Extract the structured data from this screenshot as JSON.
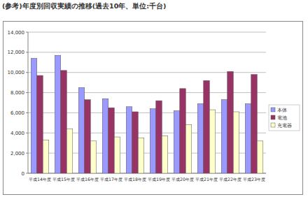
{
  "chart_data": {
    "type": "bar",
    "title": "(参考)年度別回収実績の推移(過去10年、単位:千台)",
    "categories": [
      "平成14年度",
      "平成15年度",
      "平成16年度",
      "平成17年度",
      "平成18年度",
      "平成19年度",
      "平成20年度",
      "平成21年度",
      "平成22年度",
      "平成23年度"
    ],
    "series": [
      {
        "name": "本体",
        "color": "#9999ff",
        "values": [
          11400,
          11700,
          8500,
          7400,
          6600,
          6400,
          6200,
          6900,
          7300,
          6900
        ]
      },
      {
        "name": "電池",
        "color": "#993366",
        "values": [
          9700,
          10200,
          7300,
          6500,
          6100,
          7200,
          8400,
          9200,
          10100,
          9800
        ]
      },
      {
        "name": "充電器",
        "color": "#ffffcc",
        "values": [
          3300,
          4400,
          3200,
          3600,
          3500,
          3700,
          4800,
          6300,
          6100,
          3200
        ]
      }
    ],
    "ylim": [
      0,
      14000
    ],
    "yticks": [
      0,
      {
        "value": 2000,
        "label": "2,000"
      },
      {
        "value": 4000,
        "label": "4,000"
      },
      {
        "value": 6000,
        "label": "6,000"
      },
      {
        "value": 8000,
        "label": "8,000"
      },
      {
        "value": 10000,
        "label": "10,000"
      },
      {
        "value": 12000,
        "label": "12,000"
      },
      {
        "value": 14000,
        "label": "14,000"
      }
    ],
    "grid": true,
    "legend": "right"
  }
}
